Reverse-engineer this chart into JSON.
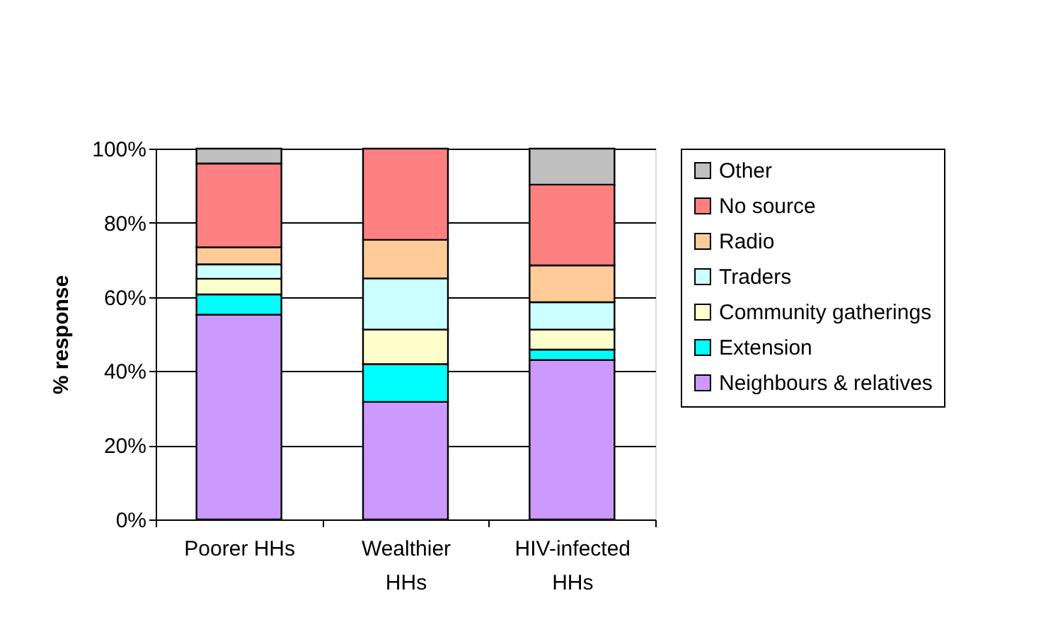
{
  "chart_data": {
    "type": "bar",
    "stacked": true,
    "ylabel": "% response",
    "categories": [
      "Poorer HHs",
      "Wealthier HHs",
      "HIV-infected HHs"
    ],
    "series": [
      {
        "name": "Neighbours & relatives",
        "color": "#cc99ff",
        "values": [
          55.2,
          31.7,
          43.0
        ]
      },
      {
        "name": "Extension",
        "color": "#00ffff",
        "values": [
          5.5,
          10.2,
          2.8
        ]
      },
      {
        "name": "Community gatherings",
        "color": "#ffffcc",
        "values": [
          4.2,
          9.3,
          5.4
        ]
      },
      {
        "name": "Traders",
        "color": "#ccffff",
        "values": [
          3.9,
          13.8,
          7.4
        ]
      },
      {
        "name": "Radio",
        "color": "#ffcc99",
        "values": [
          4.6,
          10.4,
          9.9
        ]
      },
      {
        "name": "No source",
        "color": "#ff8080",
        "values": [
          22.6,
          24.6,
          21.8
        ]
      },
      {
        "name": "Other",
        "color": "#c0c0c0",
        "values": [
          4.0,
          null,
          9.7
        ]
      }
    ],
    "ylim": [
      0,
      100
    ],
    "yticks": [
      {
        "value": 0,
        "label": "0%"
      },
      {
        "value": 20,
        "label": "20%"
      },
      {
        "value": 40,
        "label": "40%"
      },
      {
        "value": 60,
        "label": "60%"
      },
      {
        "value": 80,
        "label": "80%"
      },
      {
        "value": 100,
        "label": "100%"
      }
    ],
    "grid": "y",
    "legend": "right"
  }
}
